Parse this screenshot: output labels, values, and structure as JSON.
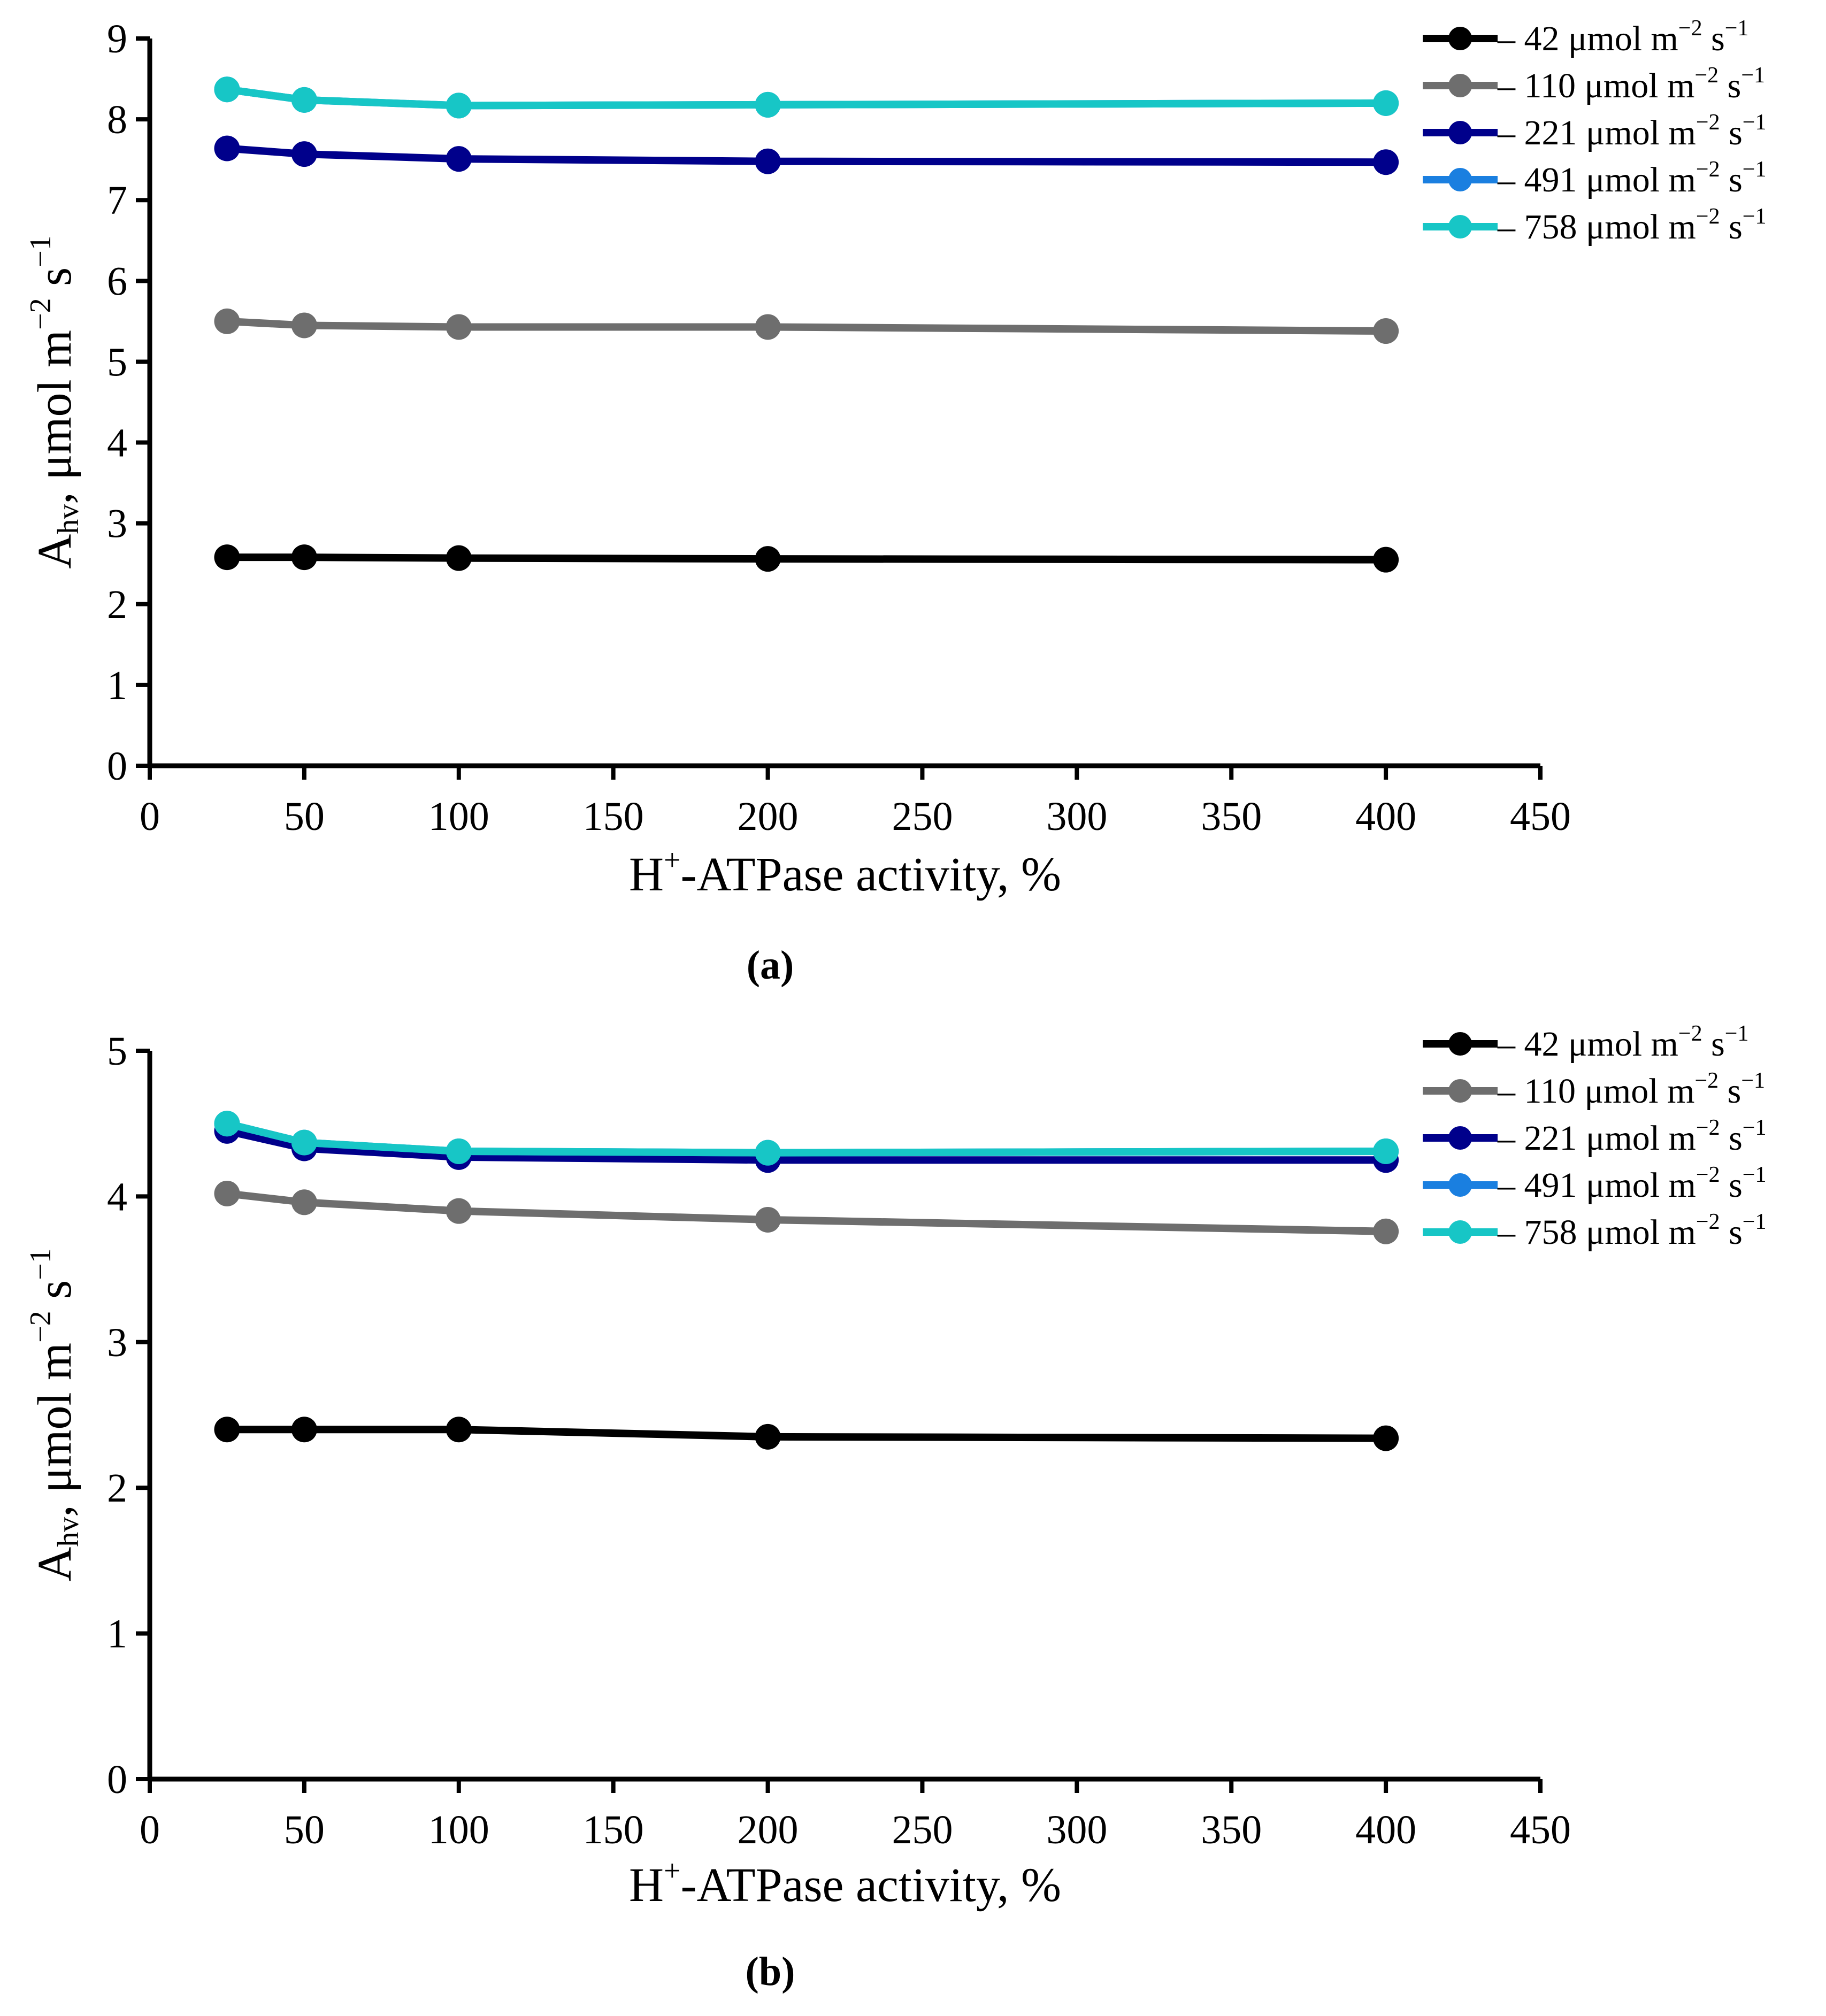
{
  "chart_data": [
    {
      "type": "line",
      "panel_label": "(a)",
      "x": [
        25,
        50,
        100,
        200,
        400
      ],
      "xlabel_main": "H",
      "xlabel_sup": "+",
      "xlabel_rest": "-ATPase activity, %",
      "ylabel_main": "A",
      "ylabel_sub": "hv",
      "ylabel_unit": ", μmol m",
      "ylabel_exp1": "−2",
      "ylabel_mid": " s",
      "ylabel_exp2": "−1",
      "xlim": [
        0,
        450
      ],
      "ylim": [
        0,
        9
      ],
      "xticks": [
        "0",
        "50",
        "100",
        "150",
        "200",
        "250",
        "300",
        "350",
        "400",
        "450"
      ],
      "yticks": [
        "0",
        "1",
        "2",
        "3",
        "4",
        "5",
        "6",
        "7",
        "8",
        "9"
      ],
      "legend_position": "top-right",
      "series": [
        {
          "name": "– 42 μmol m−2 s−1",
          "values": [
            2.58,
            2.58,
            2.57,
            2.56,
            2.55
          ]
        },
        {
          "name": "– 110 μmol m−2 s−1",
          "values": [
            5.5,
            5.45,
            5.43,
            5.43,
            5.38
          ]
        },
        {
          "name": "– 221 μmol m−2 s−1",
          "values": [
            7.64,
            7.57,
            7.51,
            7.48,
            7.47
          ]
        },
        {
          "name": "– 491 μmol m−2 s−1",
          "values": [
            8.37,
            8.24,
            8.17,
            8.18,
            8.2
          ]
        },
        {
          "name": "– 758 μmol m−2 s−1",
          "values": [
            8.37,
            8.24,
            8.17,
            8.18,
            8.2
          ]
        }
      ]
    },
    {
      "type": "line",
      "panel_label": "(b)",
      "x": [
        25,
        50,
        100,
        200,
        400
      ],
      "xlabel_main": "H",
      "xlabel_sup": "+",
      "xlabel_rest": "-ATPase activity, %",
      "ylabel_main": "A",
      "ylabel_sub": "hv",
      "ylabel_unit": ", μmol m",
      "ylabel_exp1": "−2",
      "ylabel_mid": " s",
      "ylabel_exp2": "−1",
      "xlim": [
        0,
        450
      ],
      "ylim": [
        0,
        5
      ],
      "xticks": [
        "0",
        "50",
        "100",
        "150",
        "200",
        "250",
        "300",
        "350",
        "400",
        "450"
      ],
      "yticks": [
        "0",
        "1",
        "2",
        "3",
        "4",
        "5"
      ],
      "legend_position": "top-right",
      "series": [
        {
          "name": "– 42 μmol m−2 s−1",
          "values": [
            2.4,
            2.4,
            2.4,
            2.35,
            2.34
          ]
        },
        {
          "name": "– 110 μmol m−2 s−1",
          "values": [
            4.02,
            3.96,
            3.9,
            3.84,
            3.76
          ]
        },
        {
          "name": "– 221 μmol m−2 s−1",
          "values": [
            4.45,
            4.33,
            4.27,
            4.25,
            4.25
          ]
        },
        {
          "name": "– 491 μmol m−2 s−1",
          "values": [
            4.5,
            4.37,
            4.31,
            4.3,
            4.31
          ]
        },
        {
          "name": "– 758 μmol m−2 s−1",
          "values": [
            4.5,
            4.37,
            4.31,
            4.3,
            4.31
          ]
        }
      ]
    }
  ],
  "legend": {
    "dash": "–",
    "values": [
      "42",
      "110",
      "221",
      "491",
      "758"
    ],
    "unit_a": "μmol m",
    "exp_a": "−2",
    "unit_b": " s",
    "exp_b": "−1"
  },
  "colors": {
    "series": [
      "#000000",
      "#6e6e6e",
      "#00008b",
      "#1a7fe0",
      "#17c6c6"
    ],
    "axis": "#000000"
  }
}
